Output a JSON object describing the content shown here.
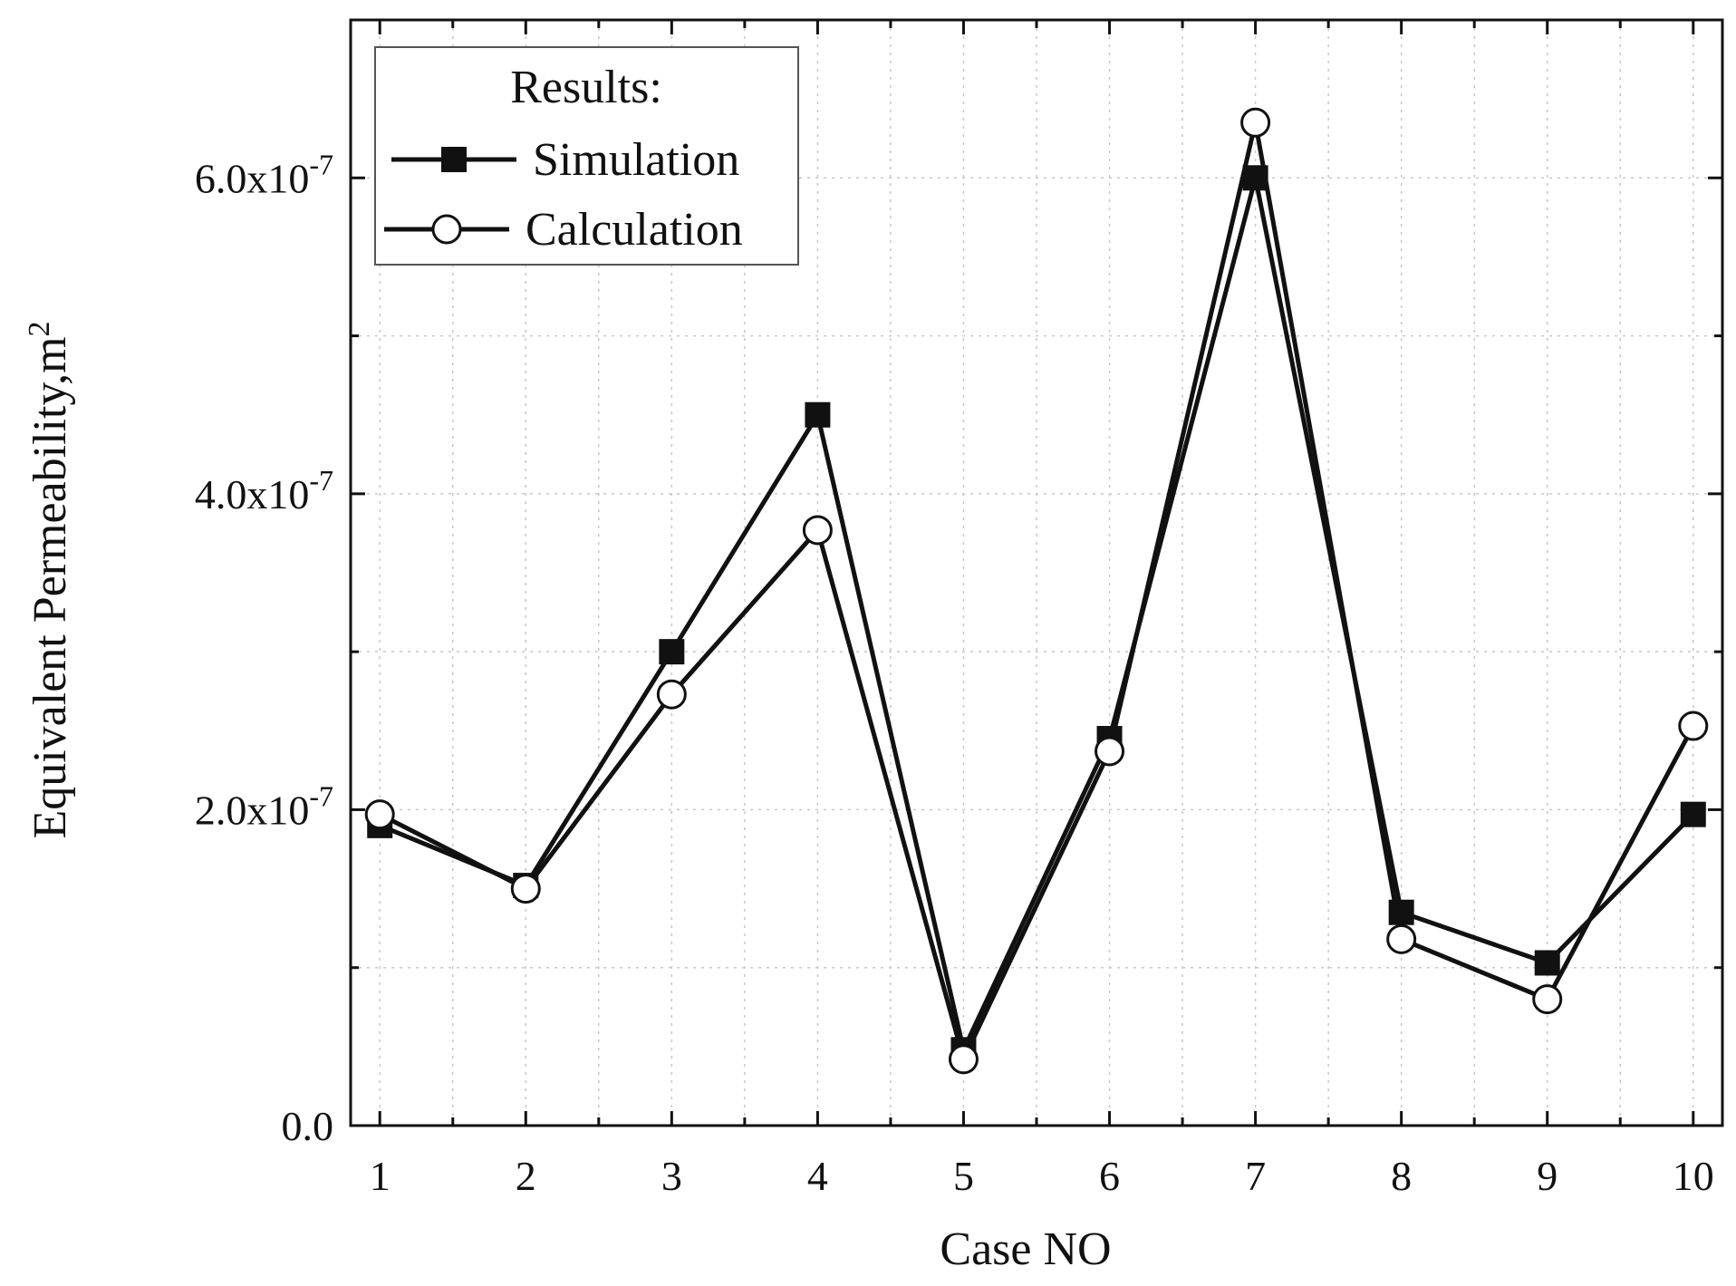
{
  "chart_data": {
    "type": "line",
    "title": "",
    "xlabel": "Case NO",
    "ylabel": "Equivalent Permeability,m",
    "ylabel_superscript": "2",
    "x": [
      1,
      2,
      3,
      4,
      5,
      6,
      7,
      8,
      9,
      10
    ],
    "x_tick_labels": [
      "1",
      "2",
      "3",
      "4",
      "5",
      "6",
      "7",
      "8",
      "9",
      "10"
    ],
    "xlim": [
      0.8,
      10.2
    ],
    "ylim": [
      0,
      7e-07
    ],
    "y_ticks": [
      {
        "value": 0,
        "base": "0.0",
        "exponent": ""
      },
      {
        "value": 2e-07,
        "base": "2.0x10",
        "exponent": "-7"
      },
      {
        "value": 4e-07,
        "base": "4.0x10",
        "exponent": "-7"
      },
      {
        "value": 6e-07,
        "base": "6.0x10",
        "exponent": "-7"
      }
    ],
    "grid": true,
    "legend": {
      "title": "Results:",
      "placement": "top-left"
    },
    "series": [
      {
        "name": "Simulation",
        "marker": "filled-square",
        "values": [
          1.9e-07,
          1.52e-07,
          3e-07,
          4.5e-07,
          4.8e-08,
          2.45e-07,
          6e-07,
          1.35e-07,
          1.03e-07,
          1.97e-07
        ]
      },
      {
        "name": "Calculation",
        "marker": "open-circle",
        "values": [
          1.97e-07,
          1.5e-07,
          2.73e-07,
          3.77e-07,
          4.2e-08,
          2.37e-07,
          6.35e-07,
          1.18e-07,
          8e-08,
          2.53e-07
        ]
      }
    ]
  }
}
